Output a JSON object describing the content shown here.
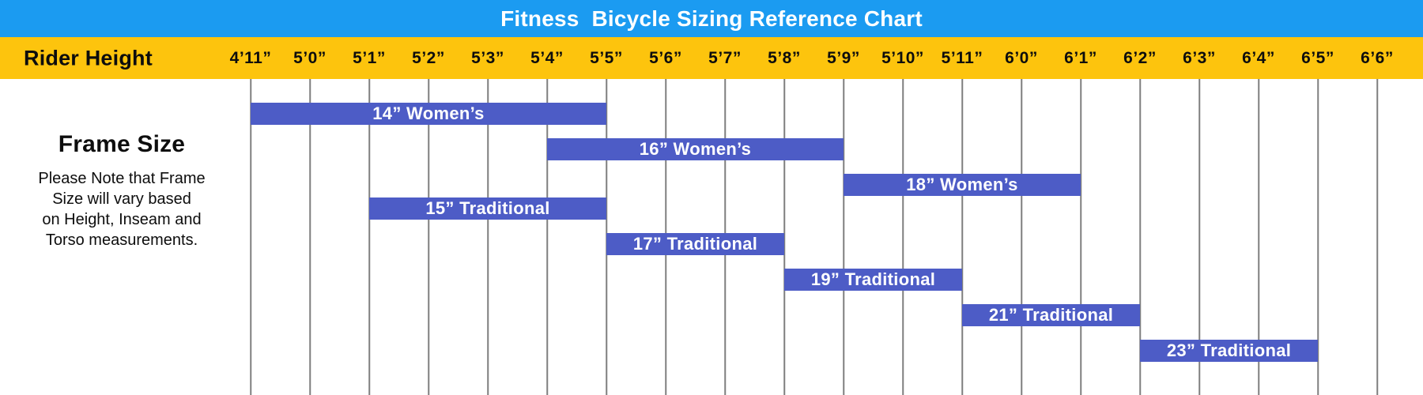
{
  "header": {
    "title": "Fitness  Bicycle Sizing Reference Chart"
  },
  "axis": {
    "label": "Rider Height"
  },
  "left_panel": {
    "heading": "Frame Size",
    "note": "Please Note that Frame\nSize will vary based\non Height, Inseam and\nTorso measurements."
  },
  "colors": {
    "header_blue": "#1B9BF1",
    "band_yellow": "#FDC40D",
    "bar_indigo": "#4D5CC6",
    "grid_gray": "#7F7F7F",
    "bar_text": "#FFFFFF",
    "axis_text": "#0D0D0D"
  },
  "chart_data": {
    "type": "bar",
    "subtype": "horizontal-range (gantt-style sizing chart)",
    "title": "Fitness  Bicycle Sizing Reference Chart",
    "x_axis_label": "Rider Height",
    "grid": true,
    "legend": false,
    "x_ticks": [
      "4’11”",
      "5’0”",
      "5’1”",
      "5’2”",
      "5’3”",
      "5’4”",
      "5’5”",
      "5’6”",
      "5’7”",
      "5’8”",
      "5’9”",
      "5’10”",
      "5’11”",
      "6’0”",
      "6’1”",
      "6’2”",
      "6’3”",
      "6’4”",
      "6’5”",
      "6’6”"
    ],
    "series": [
      {
        "label": "14” Women’s",
        "start": "4’11”",
        "end": "5’5”",
        "start_index": 0,
        "end_index": 6
      },
      {
        "label": "16” Women’s",
        "start": "5’4”",
        "end": "5’9”",
        "start_index": 5,
        "end_index": 10
      },
      {
        "label": "18” Women’s",
        "start": "5’9”",
        "end": "6’1”",
        "start_index": 10,
        "end_index": 14
      },
      {
        "label": "15” Traditional",
        "start": "5’1”",
        "end": "5’5”",
        "start_index": 2,
        "end_index": 6
      },
      {
        "label": "17” Traditional",
        "start": "5’5”",
        "end": "5’8”",
        "start_index": 6,
        "end_index": 9
      },
      {
        "label": "19” Traditional",
        "start": "5’8”",
        "end": "5’11”",
        "start_index": 9,
        "end_index": 12
      },
      {
        "label": "21” Traditional",
        "start": "5’11”",
        "end": "6’2”",
        "start_index": 12,
        "end_index": 15
      },
      {
        "label": "23” Traditional",
        "start": "6’2”",
        "end": "6’5”",
        "start_index": 15,
        "end_index": 18
      }
    ]
  }
}
